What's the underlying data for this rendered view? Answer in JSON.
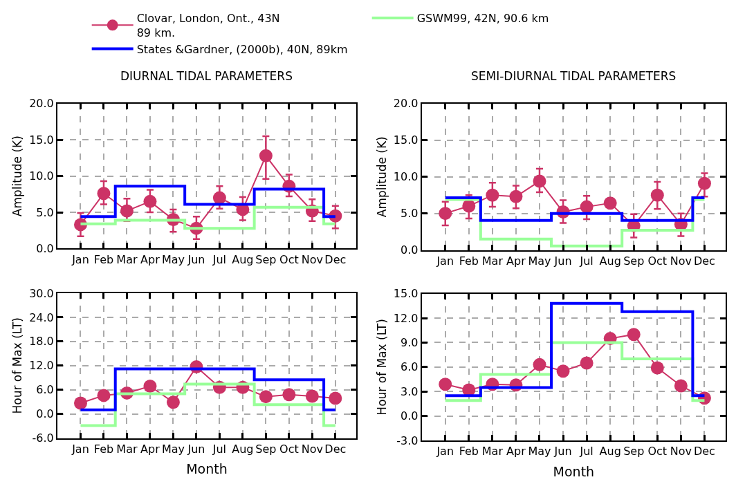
{
  "chart_data": [
    {
      "type": "line",
      "title": "DIURNAL TIDAL PARAMETERS",
      "ylabel": "Amplitude (K)",
      "legend": "top",
      "grid": true,
      "categories": [
        "Jan",
        "Feb",
        "Mar",
        "Apr",
        "May",
        "Jun",
        "Jul",
        "Aug",
        "Sep",
        "Oct",
        "Nov",
        "Dec"
      ],
      "ylim": [
        0,
        20
      ],
      "yticks": [
        {
          "value": 0,
          "label": "0.0"
        },
        {
          "value": 5,
          "label": "5.0"
        },
        {
          "value": 10,
          "label": "10.0"
        },
        {
          "value": 15,
          "label": "15.0"
        },
        {
          "value": 20,
          "label": "20.0"
        }
      ],
      "series": [
        {
          "name": "GSWM99, 42N, 90.6 km",
          "type": "step",
          "color": "#99ff99",
          "marker": "none",
          "values": [
            3.4,
            3.4,
            3.9,
            3.9,
            3.9,
            2.8,
            2.8,
            2.8,
            5.7,
            5.7,
            5.7,
            3.4
          ]
        },
        {
          "name": "States &Gardner, (2000b), 40N, 89km",
          "type": "step",
          "color": "#0000ff",
          "marker": "none",
          "values": [
            4.4,
            4.4,
            8.6,
            8.6,
            8.6,
            6.1,
            6.1,
            6.1,
            8.2,
            8.2,
            8.2,
            4.4
          ]
        },
        {
          "name": "Clovar, London, Ont., 43N\n89 km.",
          "type": "line",
          "color": "#cc3366",
          "marker": "circle",
          "values": [
            3.3,
            7.6,
            5.2,
            6.5,
            4.0,
            2.8,
            7.0,
            5.4,
            12.8,
            8.6,
            5.2,
            4.5
          ],
          "errors": [
            [
              1.7,
              4.9
            ],
            [
              6.1,
              9.3
            ],
            [
              3.8,
              6.9
            ],
            [
              5.0,
              8.1
            ],
            [
              2.3,
              5.4
            ],
            [
              1.3,
              4.4
            ],
            [
              5.5,
              8.6
            ],
            [
              3.9,
              7.1
            ],
            [
              9.6,
              15.5
            ],
            [
              7.2,
              10.2
            ],
            [
              3.8,
              6.8
            ],
            [
              2.8,
              5.9
            ]
          ]
        }
      ]
    },
    {
      "type": "line",
      "title": "SEMI-DIURNAL TIDAL PARAMETERS",
      "ylabel": "Amplitude (K)",
      "grid": true,
      "categories": [
        "Jan",
        "Feb",
        "Mar",
        "Apr",
        "May",
        "Jun",
        "Jul",
        "Aug",
        "Sep",
        "Oct",
        "Nov",
        "Dec"
      ],
      "ylim": [
        0,
        20
      ],
      "yticks": [
        {
          "value": 0,
          "label": "0.0"
        },
        {
          "value": 5,
          "label": "5.0"
        },
        {
          "value": 10,
          "label": "10.0"
        },
        {
          "value": 15,
          "label": "15.0"
        },
        {
          "value": 20,
          "label": "20.0"
        }
      ],
      "series": [
        {
          "type": "step",
          "color": "#99ff99",
          "marker": "none",
          "values": [
            6.9,
            6.9,
            1.5,
            1.5,
            1.5,
            0.55,
            0.55,
            0.55,
            2.7,
            2.7,
            2.7,
            6.9
          ]
        },
        {
          "type": "step",
          "color": "#0000ff",
          "marker": "none",
          "values": [
            7.15,
            7.15,
            4.05,
            4.05,
            4.05,
            5.0,
            5.0,
            5.0,
            4.05,
            4.05,
            4.05,
            7.15
          ]
        },
        {
          "type": "line",
          "color": "#cc3366",
          "marker": "circle",
          "values": [
            5.0,
            6.0,
            7.5,
            7.3,
            9.4,
            5.2,
            5.9,
            6.4,
            3.3,
            7.5,
            3.5,
            9.1
          ],
          "errors": [
            [
              3.35,
              6.6
            ],
            [
              4.3,
              7.5
            ],
            [
              5.9,
              9.2
            ],
            [
              5.7,
              8.8
            ],
            [
              7.9,
              11.1
            ],
            [
              3.7,
              6.8
            ],
            [
              4.2,
              7.4
            ],
            null,
            [
              1.7,
              4.9
            ],
            [
              5.6,
              9.3
            ],
            [
              1.9,
              5.0
            ],
            [
              7.3,
              10.5
            ]
          ]
        }
      ]
    },
    {
      "type": "line",
      "ylabel": "Hour of Max (LT)",
      "xlabel": "Month",
      "grid": true,
      "categories": [
        "Jan",
        "Feb",
        "Mar",
        "Apr",
        "May",
        "Jun",
        "Jul",
        "Aug",
        "Sep",
        "Oct",
        "Nov",
        "Dec"
      ],
      "ylim": [
        -6,
        30
      ],
      "yticks": [
        {
          "value": -6,
          "label": "-6.0"
        },
        {
          "value": 0,
          "label": "0.0"
        },
        {
          "value": 6,
          "label": "6.0"
        },
        {
          "value": 12,
          "label": "12.0"
        },
        {
          "value": 18,
          "label": "18.0"
        },
        {
          "value": 24,
          "label": "24.0"
        },
        {
          "value": 30,
          "label": "30.0"
        }
      ],
      "series": [
        {
          "type": "step",
          "color": "#99ff99",
          "marker": "none",
          "values": [
            -2.9,
            -2.9,
            5.0,
            5.0,
            5.0,
            7.4,
            7.4,
            7.4,
            2.3,
            2.3,
            2.3,
            -2.9
          ]
        },
        {
          "type": "step",
          "color": "#0000ff",
          "marker": "none",
          "values": [
            1.0,
            1.0,
            11.2,
            11.2,
            11.2,
            11.2,
            11.2,
            11.2,
            8.5,
            8.5,
            8.5,
            1.0
          ]
        },
        {
          "type": "line",
          "color": "#cc3366",
          "marker": "circle",
          "values": [
            2.7,
            4.6,
            5.2,
            6.9,
            2.9,
            11.7,
            6.6,
            6.6,
            4.3,
            4.8,
            4.4,
            3.9
          ]
        }
      ]
    },
    {
      "type": "line",
      "ylabel": "Hour of Max (LT)",
      "xlabel": "Month",
      "grid": true,
      "categories": [
        "Jan",
        "Feb",
        "Mar",
        "Apr",
        "May",
        "Jun",
        "Jul",
        "Aug",
        "Sep",
        "Oct",
        "Nov",
        "Dec"
      ],
      "ylim": [
        -3,
        15
      ],
      "yticks": [
        {
          "value": -3,
          "label": "-3.0"
        },
        {
          "value": 0,
          "label": "0.0"
        },
        {
          "value": 3,
          "label": "3.0"
        },
        {
          "value": 6,
          "label": "6.0"
        },
        {
          "value": 9,
          "label": "9.0"
        },
        {
          "value": 12,
          "label": "12.0"
        },
        {
          "value": 15,
          "label": "15.0"
        }
      ],
      "series": [
        {
          "type": "step",
          "color": "#99ff99",
          "marker": "none",
          "values": [
            1.9,
            1.9,
            5.1,
            5.1,
            5.1,
            9.0,
            9.0,
            9.0,
            7.0,
            7.0,
            7.0,
            1.9
          ]
        },
        {
          "type": "step",
          "color": "#0000ff",
          "marker": "none",
          "values": [
            2.5,
            2.5,
            3.5,
            3.5,
            3.5,
            13.8,
            13.8,
            13.8,
            12.8,
            12.8,
            12.8,
            2.5
          ]
        },
        {
          "type": "line",
          "color": "#cc3366",
          "marker": "circle",
          "values": [
            3.9,
            3.2,
            3.9,
            3.8,
            6.3,
            5.5,
            6.5,
            9.5,
            10.0,
            5.9,
            3.7,
            2.2
          ]
        }
      ]
    }
  ]
}
